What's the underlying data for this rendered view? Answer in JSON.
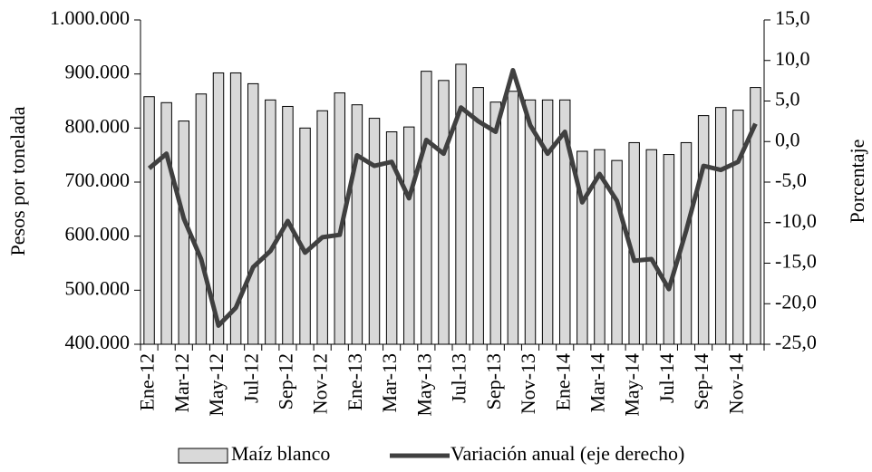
{
  "chart_data": {
    "type": "bar",
    "y_label": "Pesos por tonelada",
    "y2_label": "Porcentaje",
    "categories": [
      "Ene-12",
      null,
      "Mar-12",
      null,
      "May-12",
      null,
      "Jul-12",
      null,
      "Sep-12",
      null,
      "Nov-12",
      null,
      "Ene-13",
      null,
      "Mar-13",
      null,
      "May-13",
      null,
      "Jul-13",
      null,
      "Sep-13",
      null,
      "Nov-13",
      null,
      "Ene-14",
      null,
      "Mar-14",
      null,
      "May-14",
      null,
      "Jul-14",
      null,
      "Sep-14",
      null,
      "Nov-14",
      null
    ],
    "series": [
      {
        "name": "Maíz blanco",
        "type": "bar",
        "color": "#d9d9d9",
        "values": [
          858000,
          847000,
          813000,
          863000,
          902000,
          902000,
          882000,
          852000,
          840000,
          800000,
          832000,
          865000,
          843000,
          818000,
          793000,
          802000,
          905000,
          888000,
          918000,
          875000,
          848000,
          868000,
          852000,
          852000,
          852000,
          757000,
          760000,
          740000,
          773000,
          760000,
          751000,
          773000,
          823000,
          838000,
          833000,
          875000
        ]
      },
      {
        "name": "Variación anual (eje derecho)",
        "type": "line",
        "axis": "y2",
        "color": "#404040",
        "values": [
          -3.3,
          -1.5,
          -9.5,
          -14.5,
          -22.7,
          -20.5,
          -15.5,
          -13.5,
          -9.8,
          -13.7,
          -11.8,
          -11.5,
          -1.7,
          -3.0,
          -2.5,
          -7.0,
          0.2,
          -1.5,
          4.2,
          2.5,
          1.2,
          8.8,
          2.0,
          -1.5,
          1.2,
          -7.5,
          -4.0,
          -7.3,
          -14.7,
          -14.5,
          -18.2,
          -11.0,
          -3.0,
          -3.5,
          -2.5,
          2.2
        ]
      }
    ],
    "ylim": [
      400000,
      1000000
    ],
    "yticks": [
      {
        "value": 400000,
        "label": "400.000"
      },
      {
        "value": 500000,
        "label": "500.000"
      },
      {
        "value": 600000,
        "label": "600.000"
      },
      {
        "value": 700000,
        "label": "700.000"
      },
      {
        "value": 800000,
        "label": "800.000"
      },
      {
        "value": 900000,
        "label": "900.000"
      },
      {
        "value": 1000000,
        "label": "1.000.000"
      }
    ],
    "y2lim": [
      -25,
      15
    ],
    "y2ticks": [
      {
        "value": -25,
        "label": "-25,0"
      },
      {
        "value": -20,
        "label": "-20,0"
      },
      {
        "value": -15,
        "label": "-15,0"
      },
      {
        "value": -10,
        "label": "-10,0"
      },
      {
        "value": -5,
        "label": "-5,0"
      },
      {
        "value": 0,
        "label": "0,0"
      },
      {
        "value": 5,
        "label": "5,0"
      },
      {
        "value": 10,
        "label": "10,0"
      },
      {
        "value": 15,
        "label": "15,0"
      }
    ],
    "grid": false,
    "legend": "bottom"
  }
}
